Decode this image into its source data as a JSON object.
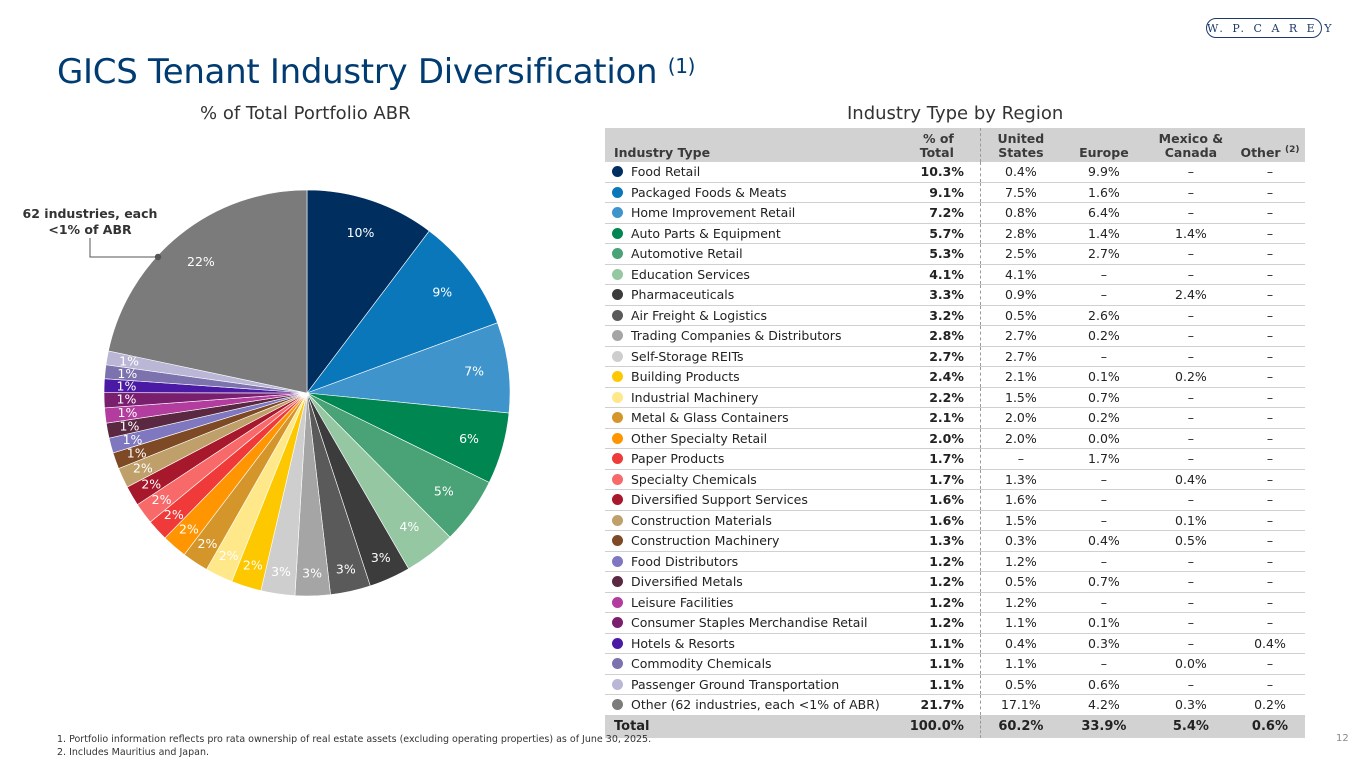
{
  "header": {
    "logo_text": "W. P. C A R E Y",
    "title": "GICS Tenant Industry Diversification ",
    "title_note": "(1)",
    "pie_title": "% of Total Portfolio ABR",
    "table_title": "Industry Type by Region"
  },
  "callout": {
    "line1": "62 industries, each",
    "line2": "<1% of ABR"
  },
  "table": {
    "headers": {
      "industry": "Industry Type",
      "total_l1": "% of",
      "total_l2": "Total",
      "us_l1": "United",
      "us_l2": "States",
      "europe": "Europe",
      "mc_l1": "Mexico &",
      "mc_l2": "Canada",
      "other": "Other ",
      "other_note": "(2)"
    },
    "rows": [
      {
        "name": "Food Retail",
        "total": "10.3%",
        "us": "0.4%",
        "europe": "9.9%",
        "mc": "–",
        "other": "–",
        "color": "#002f5f"
      },
      {
        "name": "Packaged Foods & Meats",
        "total": "9.1%",
        "us": "7.5%",
        "europe": "1.6%",
        "mc": "–",
        "other": "–",
        "color": "#0a77bb"
      },
      {
        "name": "Home Improvement Retail",
        "total": "7.2%",
        "us": "0.8%",
        "europe": "6.4%",
        "mc": "–",
        "other": "–",
        "color": "#3f94cc"
      },
      {
        "name": "Auto Parts & Equipment",
        "total": "5.7%",
        "us": "2.8%",
        "europe": "1.4%",
        "mc": "1.4%",
        "other": "–",
        "color": "#008751"
      },
      {
        "name": "Automotive Retail",
        "total": "5.3%",
        "us": "2.5%",
        "europe": "2.7%",
        "mc": "–",
        "other": "–",
        "color": "#4aa277"
      },
      {
        "name": "Education Services",
        "total": "4.1%",
        "us": "4.1%",
        "europe": "–",
        "mc": "–",
        "other": "–",
        "color": "#95c7a3"
      },
      {
        "name": "Pharmaceuticals",
        "total": "3.3%",
        "us": "0.9%",
        "europe": "–",
        "mc": "2.4%",
        "other": "–",
        "color": "#3c3c3c"
      },
      {
        "name": "Air Freight & Logistics",
        "total": "3.2%",
        "us": "0.5%",
        "europe": "2.6%",
        "mc": "–",
        "other": "–",
        "color": "#5a5a5a"
      },
      {
        "name": "Trading Companies & Distributors",
        "total": "2.8%",
        "us": "2.7%",
        "europe": "0.2%",
        "mc": "–",
        "other": "–",
        "color": "#a5a5a5"
      },
      {
        "name": "Self-Storage REITs",
        "total": "2.7%",
        "us": "2.7%",
        "europe": "–",
        "mc": "–",
        "other": "–",
        "color": "#cecece"
      },
      {
        "name": "Building Products",
        "total": "2.4%",
        "us": "2.1%",
        "europe": "0.1%",
        "mc": "0.2%",
        "other": "–",
        "color": "#fdc800"
      },
      {
        "name": "Industrial Machinery",
        "total": "2.2%",
        "us": "1.5%",
        "europe": "0.7%",
        "mc": "–",
        "other": "–",
        "color": "#ffe889"
      },
      {
        "name": "Metal & Glass Containers",
        "total": "2.1%",
        "us": "2.0%",
        "europe": "0.2%",
        "mc": "–",
        "other": "–",
        "color": "#d4962b"
      },
      {
        "name": "Other Specialty Retail",
        "total": "2.0%",
        "us": "2.0%",
        "europe": "0.0%",
        "mc": "–",
        "other": "–",
        "color": "#ff9500"
      },
      {
        "name": "Paper Products",
        "total": "1.7%",
        "us": "–",
        "europe": "1.7%",
        "mc": "–",
        "other": "–",
        "color": "#f03a3a"
      },
      {
        "name": "Specialty Chemicals",
        "total": "1.7%",
        "us": "1.3%",
        "europe": "–",
        "mc": "0.4%",
        "other": "–",
        "color": "#f86a6a"
      },
      {
        "name": "Diversified Support Services",
        "total": "1.6%",
        "us": "1.6%",
        "europe": "–",
        "mc": "–",
        "other": "–",
        "color": "#a8182c"
      },
      {
        "name": "Construction Materials",
        "total": "1.6%",
        "us": "1.5%",
        "europe": "–",
        "mc": "0.1%",
        "other": "–",
        "color": "#c0a06a"
      },
      {
        "name": "Construction Machinery",
        "total": "1.3%",
        "us": "0.3%",
        "europe": "0.4%",
        "mc": "0.5%",
        "other": "–",
        "color": "#7e4a26"
      },
      {
        "name": "Food Distributors",
        "total": "1.2%",
        "us": "1.2%",
        "europe": "–",
        "mc": "–",
        "other": "–",
        "color": "#7f78c0"
      },
      {
        "name": "Diversified Metals",
        "total": "1.2%",
        "us": "0.5%",
        "europe": "0.7%",
        "mc": "–",
        "other": "–",
        "color": "#5a2840"
      },
      {
        "name": "Leisure Facilities",
        "total": "1.2%",
        "us": "1.2%",
        "europe": "–",
        "mc": "–",
        "other": "–",
        "color": "#b23d9f"
      },
      {
        "name": "Consumer Staples Merchandise Retail",
        "total": "1.2%",
        "us": "1.1%",
        "europe": "0.1%",
        "mc": "–",
        "other": "–",
        "color": "#7a1e6e"
      },
      {
        "name": "Hotels & Resorts",
        "total": "1.1%",
        "us": "0.4%",
        "europe": "0.3%",
        "mc": "–",
        "other": "0.4%",
        "color": "#4b1aa5"
      },
      {
        "name": "Commodity Chemicals",
        "total": "1.1%",
        "us": "1.1%",
        "europe": "–",
        "mc": "0.0%",
        "other": "–",
        "color": "#7c72ad"
      },
      {
        "name": "Passenger Ground Transportation",
        "total": "1.1%",
        "us": "0.5%",
        "europe": "0.6%",
        "mc": "–",
        "other": "–",
        "color": "#b9b6d6"
      },
      {
        "name": "Other (62 industries, each <1% of ABR)",
        "total": "21.7%",
        "us": "17.1%",
        "europe": "4.2%",
        "mc": "0.3%",
        "other": "0.2%",
        "color": "#7b7b7b"
      }
    ],
    "total_row": {
      "name": "Total",
      "total": "100.0%",
      "us": "60.2%",
      "europe": "33.9%",
      "mc": "5.4%",
      "other": "0.6%"
    }
  },
  "chart_data": {
    "type": "pie",
    "title": "% of Total Portfolio ABR",
    "start_angle": "12 o'clock, clockwise",
    "categories": [
      "Food Retail",
      "Packaged Foods & Meats",
      "Home Improvement Retail",
      "Auto Parts & Equipment",
      "Automotive Retail",
      "Education Services",
      "Pharmaceuticals",
      "Air Freight & Logistics",
      "Trading Companies & Distributors",
      "Self-Storage REITs",
      "Building Products",
      "Industrial Machinery",
      "Metal & Glass Containers",
      "Other Specialty Retail",
      "Paper Products",
      "Specialty Chemicals",
      "Diversified Support Services",
      "Construction Materials",
      "Construction Machinery",
      "Food Distributors",
      "Diversified Metals",
      "Leisure Facilities",
      "Consumer Staples Merchandise Retail",
      "Hotels & Resorts",
      "Commodity Chemicals",
      "Passenger Ground Transportation",
      "Other (62 industries, each <1% of ABR)"
    ],
    "values": [
      10.3,
      9.1,
      7.2,
      5.7,
      5.3,
      4.1,
      3.3,
      3.2,
      2.8,
      2.7,
      2.4,
      2.2,
      2.1,
      2.0,
      1.7,
      1.7,
      1.6,
      1.6,
      1.3,
      1.2,
      1.2,
      1.2,
      1.2,
      1.1,
      1.1,
      1.1,
      21.7
    ],
    "labels": [
      "10%",
      "9%",
      "7%",
      "6%",
      "5%",
      "4%",
      "3%",
      "3%",
      "3%",
      "3%",
      "2%",
      "2%",
      "2%",
      "2%",
      "2%",
      "2%",
      "2%",
      "2%",
      "1%",
      "1%",
      "1%",
      "1%",
      "1%",
      "1%",
      "1%",
      "1%",
      "22%"
    ],
    "label_colors": [
      "#ffffff",
      "#ffffff",
      "#ffffff",
      "#ffffff",
      "#ffffff",
      "#ffffff",
      "#ffffff",
      "#ffffff",
      "#ffffff",
      "#ffffff",
      "#ffffff",
      "#ffffff",
      "#ffffff",
      "#ffffff",
      "#ffffff",
      "#ffffff",
      "#ffffff",
      "#ffffff",
      "#ffffff",
      "#ffffff",
      "#ffffff",
      "#ffffff",
      "#ffffff",
      "#ffffff",
      "#ffffff",
      "#ffffff",
      "#ffffff"
    ],
    "colors": [
      "#002f5f",
      "#0a77bb",
      "#3f94cc",
      "#008751",
      "#4aa277",
      "#95c7a3",
      "#3c3c3c",
      "#5a5a5a",
      "#a5a5a5",
      "#cecece",
      "#fdc800",
      "#ffe889",
      "#d4962b",
      "#ff9500",
      "#f03a3a",
      "#f86a6a",
      "#a8182c",
      "#c0a06a",
      "#7e4a26",
      "#7f78c0",
      "#5a2840",
      "#b23d9f",
      "#7a1e6e",
      "#4b1aa5",
      "#7c72ad",
      "#b9b6d6",
      "#7b7b7b"
    ]
  },
  "footnotes": {
    "note1": "1. Portfolio information reflects pro rata ownership of real estate assets (excluding operating properties) as of June 30, 2025.",
    "note2": "2. Includes Mauritius and Japan."
  },
  "page_number": "12"
}
